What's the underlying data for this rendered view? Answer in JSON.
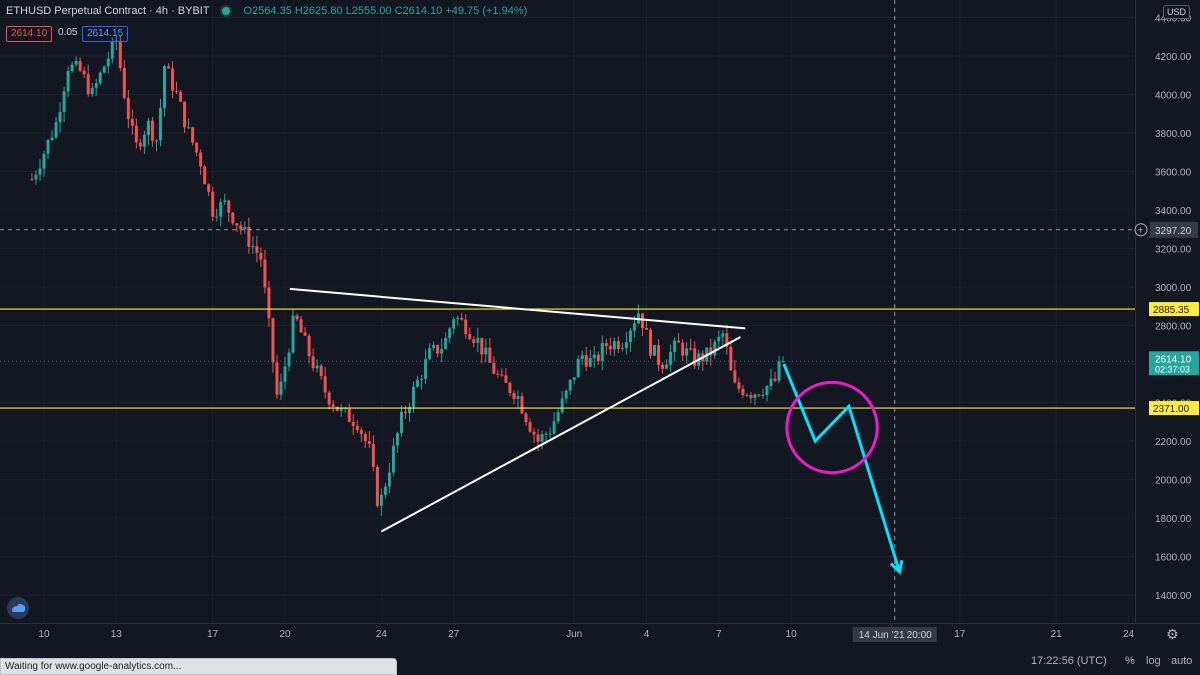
{
  "legend": {
    "symbol": "ETHUSD Perpetual Contract · 4h · BYBIT",
    "ohlc": "O2564.35 H2625.80 L2555.00 C2614.10 +49.75 (+1.94%)",
    "sell_quote": "2614.10",
    "spread": "0.05",
    "buy_quote": "2614.15"
  },
  "currency_button": "USD",
  "crosshair": {
    "price_label": "3297.20",
    "time_label": "14 Jun '21",
    "time_label_2": "20:00"
  },
  "price_tag": {
    "price": "2614.10",
    "countdown": "02:37:03"
  },
  "bottom": {
    "clock": "17:22:56 (UTC)",
    "percent": "%",
    "log": "log",
    "auto": "auto",
    "status": "Waiting for www.google-analytics.com..."
  },
  "icons": {
    "logo": "tradingview-logo-icon",
    "settings": "gear-icon",
    "crosshair_add": "plus-circle-icon"
  },
  "colors": {
    "background": "#131722",
    "up": "#26a69a",
    "down": "#ef5350",
    "level": "#ffeb3b",
    "trendline": "#ffffff",
    "projection": "#00e5ff",
    "circle": "#e91ec8"
  },
  "chart_data": {
    "type": "candlestick",
    "title": "ETHUSD Perpetual Contract · 4h · BYBIT",
    "y_ticks": [
      1400,
      1600,
      1800,
      2000,
      2200,
      2400,
      2600,
      2800,
      3000,
      3200,
      3400,
      3600,
      3800,
      4000,
      4200,
      4400
    ],
    "y_tick_labels": [
      "1400.00",
      "1600.00",
      "1800.00",
      "2000.00",
      "2200.00",
      "2400.00",
      "2600.00",
      "2800.00",
      "3000.00",
      "3200.00",
      "3400.00",
      "3600.00",
      "3800.00",
      "4000.00",
      "4200.00",
      "4400.00"
    ],
    "ylim": [
      1300,
      4460
    ],
    "x_ticks": [
      {
        "label": "10",
        "day": 0
      },
      {
        "label": "13",
        "day": 3
      },
      {
        "label": "17",
        "day": 7
      },
      {
        "label": "20",
        "day": 10
      },
      {
        "label": "24",
        "day": 14
      },
      {
        "label": "27",
        "day": 17
      },
      {
        "label": "Jun",
        "day": 22
      },
      {
        "label": "4",
        "day": 25
      },
      {
        "label": "7",
        "day": 28
      },
      {
        "label": "10",
        "day": 31
      },
      {
        "label": "17",
        "day": 38
      },
      {
        "label": "21",
        "day": 42
      },
      {
        "label": "24",
        "day": 45
      }
    ],
    "horizontal_levels": [
      {
        "price": 2885.35,
        "label": "2885.35"
      },
      {
        "price": 2371.0,
        "label": "2371.00"
      }
    ],
    "last_price": 2614.1,
    "price_path": [
      [
        -0.5,
        3560
      ],
      [
        0,
        3700
      ],
      [
        0.5,
        3850
      ],
      [
        1,
        4150
      ],
      [
        1.5,
        4120
      ],
      [
        2,
        4000
      ],
      [
        2.5,
        4150
      ],
      [
        3,
        4280
      ],
      [
        3.4,
        3950
      ],
      [
        3.8,
        3720
      ],
      [
        4.3,
        3850
      ],
      [
        4.7,
        3760
      ],
      [
        5,
        4150
      ],
      [
        5.5,
        4000
      ],
      [
        6,
        3800
      ],
      [
        6.5,
        3650
      ],
      [
        7,
        3400
      ],
      [
        7.5,
        3430
      ],
      [
        8.2,
        3300
      ],
      [
        9,
        3150
      ],
      [
        9.7,
        2400
      ],
      [
        10.4,
        2850
      ],
      [
        11,
        2650
      ],
      [
        11.7,
        2450
      ],
      [
        12.3,
        2350
      ],
      [
        13,
        2300
      ],
      [
        13.5,
        2150
      ],
      [
        13.9,
        1850
      ],
      [
        14.3,
        2050
      ],
      [
        14.8,
        2300
      ],
      [
        15.3,
        2450
      ],
      [
        16,
        2650
      ],
      [
        16.6,
        2700
      ],
      [
        17,
        2850
      ],
      [
        17.5,
        2800
      ],
      [
        18,
        2720
      ],
      [
        18.5,
        2600
      ],
      [
        19,
        2500
      ],
      [
        19.6,
        2450
      ],
      [
        20.1,
        2300
      ],
      [
        20.5,
        2200
      ],
      [
        21,
        2260
      ],
      [
        21.7,
        2450
      ],
      [
        22.3,
        2650
      ],
      [
        22.8,
        2600
      ],
      [
        23.3,
        2700
      ],
      [
        24,
        2720
      ],
      [
        24.7,
        2880
      ],
      [
        25.1,
        2700
      ],
      [
        25.6,
        2600
      ],
      [
        26.3,
        2700
      ],
      [
        27,
        2620
      ],
      [
        27.6,
        2650
      ],
      [
        28.2,
        2760
      ],
      [
        28.6,
        2480
      ],
      [
        29,
        2470
      ],
      [
        29.4,
        2450
      ],
      [
        29.9,
        2480
      ],
      [
        30.3,
        2500
      ],
      [
        30.6,
        2614.1
      ]
    ],
    "annotations": {
      "trendlines": [
        {
          "from": [
            10.2,
            2990
          ],
          "to": [
            29.1,
            2785
          ]
        },
        {
          "from": [
            14,
            1730
          ],
          "to": [
            28.9,
            2740
          ]
        }
      ],
      "projection_path": [
        [
          30.7,
          2600
        ],
        [
          32.0,
          2200
        ],
        [
          33.4,
          2380
        ],
        [
          35.5,
          1520
        ]
      ],
      "circle": {
        "center_day": 32.7,
        "center_price": 2270,
        "r_days": 1.5
      }
    }
  }
}
